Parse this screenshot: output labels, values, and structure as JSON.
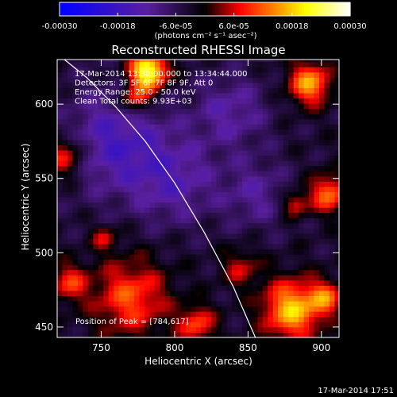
{
  "chart_data": {
    "type": "heatmap",
    "title": "Reconstructed RHESSI Image",
    "xlabel": "Heliocentric X (arcsec)",
    "ylabel": "Heliocentric Y (arcsec)",
    "xlim": [
      720,
      912
    ],
    "ylim": [
      443,
      630
    ],
    "x_ticks": [
      750,
      800,
      850,
      900
    ],
    "y_ticks": [
      450,
      500,
      550,
      600
    ],
    "colorbar": {
      "range": [
        -0.0003,
        0.0003
      ],
      "tick_values": [
        -0.0003,
        -0.00018,
        -6e-05,
        6e-05,
        0.00018,
        0.0003
      ],
      "tick_labels": [
        "-0.00030",
        "-0.00018",
        "-6.0e-05",
        "6.0e-05",
        "0.00018",
        "0.00030"
      ],
      "units_label": "(photons cm⁻² s⁻¹ asec⁻²)",
      "colormap": [
        "#0000ff",
        "#5a1fa0",
        "#000000",
        "#ff0000",
        "#ffff00",
        "#ffffff"
      ]
    },
    "annotations": [
      "17-Mar-2014 13:30:00.000 to 13:34:44.000",
      "Detectors: 3F 5F 6F 7F 8F 9F, Att 0",
      "Energy Range: 25.0 - 50.0 keV",
      "Clean    Total counts: 9.93E+03"
    ],
    "peak_label": "Position of Peak = [784,617]",
    "limb_curve": {
      "x": [
        725,
        740,
        760,
        780,
        800,
        820,
        840,
        855
      ],
      "y": [
        630,
        618,
        598,
        575,
        547,
        514,
        477,
        443
      ]
    },
    "sources": [
      {
        "x": 782,
        "y": 622,
        "sigma": 9,
        "amp": 1.0
      },
      {
        "x": 773,
        "y": 603,
        "sigma": 7,
        "amp": 0.5
      },
      {
        "x": 892,
        "y": 614,
        "sigma": 10,
        "amp": 0.65
      },
      {
        "x": 905,
        "y": 540,
        "sigma": 9,
        "amp": 0.55
      },
      {
        "x": 882,
        "y": 533,
        "sigma": 6,
        "amp": 0.4
      },
      {
        "x": 880,
        "y": 462,
        "sigma": 14,
        "amp": 0.72
      },
      {
        "x": 903,
        "y": 470,
        "sigma": 8,
        "amp": 0.45
      },
      {
        "x": 815,
        "y": 452,
        "sigma": 9,
        "amp": 0.45
      },
      {
        "x": 770,
        "y": 470,
        "sigma": 18,
        "amp": 0.48
      },
      {
        "x": 728,
        "y": 480,
        "sigma": 9,
        "amp": 0.4
      },
      {
        "x": 725,
        "y": 565,
        "sigma": 10,
        "amp": 0.45
      },
      {
        "x": 845,
        "y": 490,
        "sigma": 9,
        "amp": 0.3
      },
      {
        "x": 752,
        "y": 510,
        "sigma": 6,
        "amp": 0.3
      }
    ],
    "negative_regions": [
      {
        "x": 760,
        "y": 575,
        "sigma": 25,
        "amp": -0.4
      },
      {
        "x": 800,
        "y": 548,
        "sigma": 20,
        "amp": -0.3
      },
      {
        "x": 838,
        "y": 595,
        "sigma": 18,
        "amp": -0.28
      },
      {
        "x": 855,
        "y": 540,
        "sigma": 16,
        "amp": -0.25
      }
    ]
  },
  "timestamp": "17-Mar-2014 17:51"
}
